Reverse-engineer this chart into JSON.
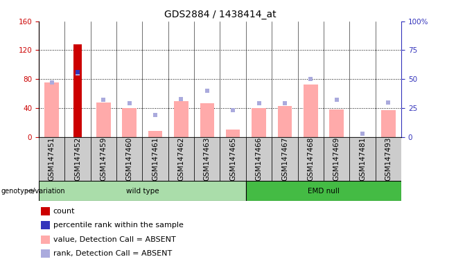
{
  "title": "GDS2884 / 1438414_at",
  "samples": [
    "GSM147451",
    "GSM147452",
    "GSM147459",
    "GSM147460",
    "GSM147461",
    "GSM147462",
    "GSM147463",
    "GSM147465",
    "GSM147466",
    "GSM147467",
    "GSM147468",
    "GSM147469",
    "GSM147481",
    "GSM147493"
  ],
  "count_values": [
    0,
    128,
    0,
    0,
    0,
    0,
    0,
    0,
    0,
    0,
    0,
    0,
    0,
    0
  ],
  "value_absent": [
    75,
    0,
    48,
    40,
    8,
    50,
    47,
    10,
    40,
    43,
    73,
    38,
    0,
    37
  ],
  "rank_absent": [
    47,
    55,
    32,
    29,
    19,
    33,
    40,
    23,
    29,
    29,
    50,
    32,
    3,
    30
  ],
  "percentile_rank": [
    0,
    56,
    0,
    0,
    0,
    0,
    0,
    0,
    0,
    0,
    0,
    0,
    0,
    0
  ],
  "n_wild_type": 8,
  "n_emd_null": 6,
  "ylim_left": [
    0,
    160
  ],
  "ylim_right": [
    0,
    100
  ],
  "left_ticks": [
    0,
    40,
    80,
    120,
    160
  ],
  "right_ticks": [
    0,
    25,
    50,
    75,
    100
  ],
  "right_tick_labels": [
    "0",
    "25",
    "50",
    "75",
    "100%"
  ],
  "left_color": "#cc0000",
  "right_color": "#3333bb",
  "bar_color_count": "#cc0000",
  "bar_color_absent_value": "#ffaaaa",
  "bar_color_absent_rank": "#aaaadd",
  "bg_color": "#cccccc",
  "wt_bg": "#aaddaa",
  "emd_bg": "#44bb44",
  "label_fontsize": 7.5,
  "title_fontsize": 10,
  "legend_fontsize": 8
}
